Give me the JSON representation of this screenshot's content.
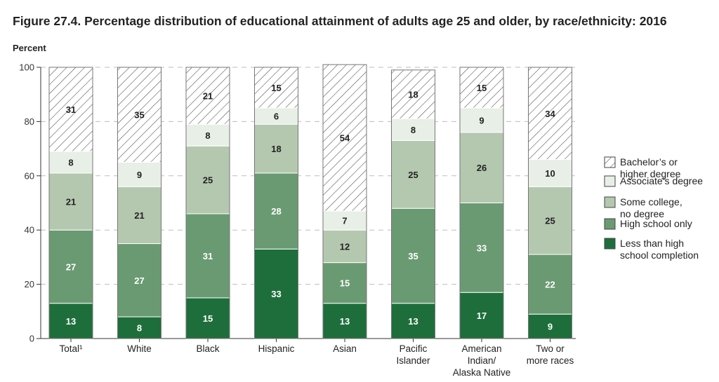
{
  "chart_data": {
    "type": "bar",
    "stacked": true,
    "title": "Figure 27.4. Percentage distribution of educational attainment of adults age 25 and older, by race/ethnicity: 2016",
    "ylabel": "Percent",
    "ylim": [
      0,
      100
    ],
    "yticks": [
      0,
      20,
      40,
      60,
      80,
      100
    ],
    "categories": [
      [
        "Total¹"
      ],
      [
        "White"
      ],
      [
        "Black"
      ],
      [
        "Hispanic"
      ],
      [
        "Asian"
      ],
      [
        "Pacific",
        "Islander"
      ],
      [
        "American",
        "Indian/",
        "Alaska Native"
      ],
      [
        "Two or",
        "more races"
      ]
    ],
    "series": [
      {
        "name": "Less than high school completion",
        "legend": [
          "Less than high",
          "school completion"
        ],
        "color": "#1e6e3c",
        "text_color": "#ffffff",
        "values": [
          13,
          8,
          15,
          33,
          13,
          13,
          17,
          9
        ]
      },
      {
        "name": "High school only",
        "legend": [
          "High school only"
        ],
        "color": "#6a9a72",
        "text_color": "#ffffff",
        "values": [
          27,
          27,
          31,
          28,
          15,
          35,
          33,
          22
        ]
      },
      {
        "name": "Some college, no degree",
        "legend": [
          "Some college,",
          "no degree"
        ],
        "color": "#b4c8b0",
        "text_color": "#222222",
        "values": [
          21,
          21,
          25,
          18,
          12,
          25,
          26,
          25
        ]
      },
      {
        "name": "Associate's degree",
        "legend": [
          "Associate’s degree"
        ],
        "color": "#e8efe6",
        "text_color": "#222222",
        "values": [
          8,
          9,
          8,
          6,
          7,
          8,
          9,
          10
        ]
      },
      {
        "name": "Bachelor's or higher degree",
        "legend": [
          "Bachelor’s or",
          "higher degree"
        ],
        "color": "hatch",
        "text_color": "#222222",
        "values": [
          31,
          35,
          21,
          15,
          54,
          18,
          15,
          34
        ]
      }
    ]
  }
}
